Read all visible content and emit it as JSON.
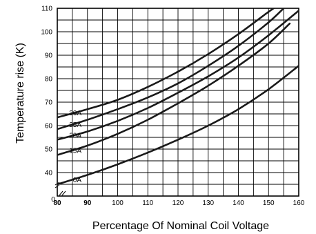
{
  "chart_data": {
    "type": "line",
    "xlabel": "Percentage Of Nominal Coil Voltage",
    "ylabel": "Temperature rise (K)",
    "xlim": [
      80,
      160
    ],
    "ylim": [
      30,
      110
    ],
    "grid": true,
    "x_ticks": [
      "0",
      "80",
      "90",
      "100",
      "110",
      "120",
      "130",
      "140",
      "150",
      "160"
    ],
    "y_ticks": [
      "40",
      "50",
      "60",
      "70",
      "80",
      "90",
      "100",
      "110"
    ],
    "series": [
      {
        "name": "0A",
        "x": [
          80,
          90,
          100,
          110,
          120,
          130,
          140,
          150,
          160
        ],
        "y": [
          35,
          39,
          43.5,
          48.5,
          54,
          60,
          67,
          75.5,
          85.5
        ]
      },
      {
        "name": "15A",
        "x": [
          80,
          90,
          100,
          110,
          120,
          130,
          140,
          150,
          157
        ],
        "y": [
          47.5,
          51.5,
          56.5,
          62.5,
          69.5,
          77,
          85.5,
          95,
          103.5
        ]
      },
      {
        "name": "20A",
        "x": [
          80,
          90,
          100,
          110,
          120,
          130,
          140,
          150,
          160
        ],
        "y": [
          54,
          57.5,
          62,
          67.5,
          74,
          81,
          89,
          98.5,
          109
        ]
      },
      {
        "name": "25A",
        "x": [
          80,
          90,
          100,
          110,
          120,
          130,
          140,
          150,
          155
        ],
        "y": [
          58.5,
          62.5,
          67,
          72,
          78,
          85.5,
          94,
          104,
          110
        ]
      },
      {
        "name": "30A",
        "x": [
          80,
          90,
          100,
          110,
          120,
          130,
          140,
          150,
          153
        ],
        "y": [
          63.5,
          67,
          71,
          76.5,
          83,
          90.5,
          99,
          108.5,
          111
        ]
      }
    ]
  }
}
